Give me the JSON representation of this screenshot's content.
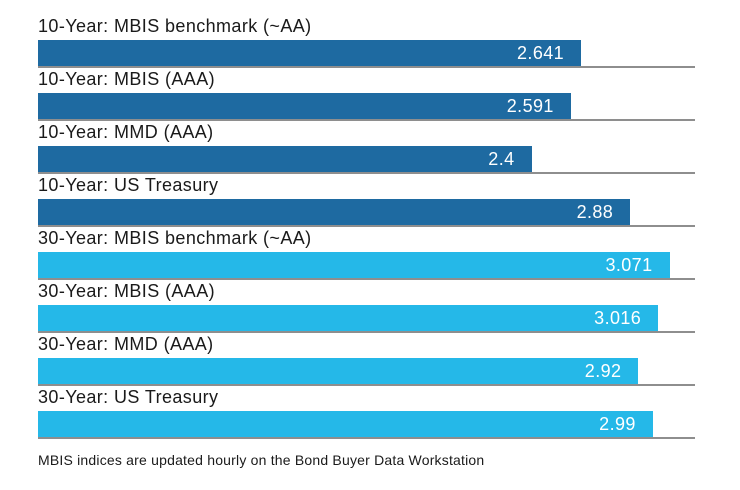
{
  "chart_data": {
    "type": "bar",
    "orientation": "horizontal",
    "title": "",
    "xlabel": "",
    "ylabel": "",
    "xlim": [
      0,
      3.195
    ],
    "grid": false,
    "legend_position": "none",
    "categories": [
      "10-Year: MBIS benchmark (~AA)",
      "10-Year: MBIS (AAA)",
      "10-Year: MMD (AAA)",
      "10-Year: US Treasury",
      "30-Year: MBIS benchmark (~AA)",
      "30-Year: MBIS (AAA)",
      "30-Year: MMD (AAA)",
      "30-Year: US Treasury"
    ],
    "values": [
      2.641,
      2.591,
      2.4,
      2.88,
      3.071,
      3.016,
      2.92,
      2.99
    ],
    "bars": [
      {
        "label": "10-Year: MBIS benchmark (~AA)",
        "value": 2.641,
        "display": "2.641",
        "group": "ten_year"
      },
      {
        "label": "10-Year: MBIS (AAA)",
        "value": 2.591,
        "display": "2.591",
        "group": "ten_year"
      },
      {
        "label": "10-Year: MMD (AAA)",
        "value": 2.4,
        "display": "2.4",
        "group": "ten_year"
      },
      {
        "label": "10-Year: US Treasury",
        "value": 2.88,
        "display": "2.88",
        "group": "ten_year"
      },
      {
        "label": "30-Year: MBIS benchmark (~AA)",
        "value": 3.071,
        "display": "3.071",
        "group": "thirty_year"
      },
      {
        "label": "30-Year: MBIS (AAA)",
        "value": 3.016,
        "display": "3.016",
        "group": "thirty_year"
      },
      {
        "label": "30-Year: MMD (AAA)",
        "value": 2.92,
        "display": "2.92",
        "group": "thirty_year"
      },
      {
        "label": "30-Year: US Treasury",
        "value": 2.99,
        "display": "2.99",
        "group": "thirty_year"
      }
    ],
    "colors": {
      "ten_year": "#1e6aa1",
      "thirty_year": "#25b8e8",
      "separator": "#8e8e8e",
      "value_text": "#ffffff",
      "label_text": "#1a1a1a"
    }
  },
  "footnote": "MBIS indices are updated hourly on the Bond Buyer Data Workstation"
}
